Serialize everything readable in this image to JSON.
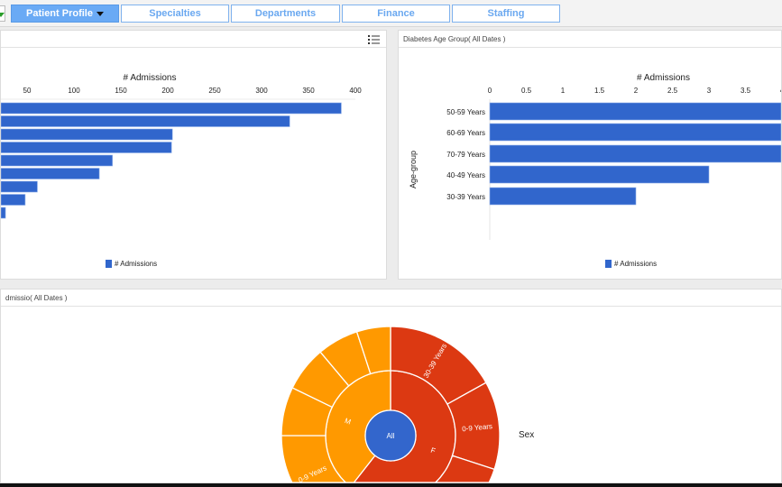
{
  "tabs": [
    {
      "label": "Patient Profile",
      "active": true
    },
    {
      "label": "Specialties"
    },
    {
      "label": "Departments"
    },
    {
      "label": "Finance"
    },
    {
      "label": "Staffing"
    }
  ],
  "colors": {
    "bar": "#3166cc",
    "female": "#dc3912",
    "male": "#ff9900",
    "root": "#3366cc",
    "tab_accent": "#6aaaf5"
  },
  "left_panel": {
    "title": "",
    "icon": "list-icon"
  },
  "right_panel": {
    "title": "Diabetes Age Group( All Dates )"
  },
  "bottom_panel": {
    "title": "dmissio( All Dates )"
  },
  "chart_data": [
    {
      "type": "bar",
      "orientation": "horizontal",
      "xlabel": "# Admissions",
      "ticks": [
        "50",
        "100",
        "150",
        "200",
        "250",
        "300",
        "350",
        "400"
      ],
      "xlim": [
        0,
        400
      ],
      "values": [
        385,
        330,
        205,
        204,
        141,
        127,
        61,
        48,
        27
      ],
      "legend": "# Admissions",
      "legend_position": "bottom"
    },
    {
      "type": "bar",
      "orientation": "horizontal",
      "xlabel": "# Admissions",
      "ylabel": "Age-group",
      "ticks": [
        "0",
        "0.5",
        "1",
        "1.5",
        "2",
        "2.5",
        "3",
        "3.5",
        "4"
      ],
      "xlim": [
        0,
        4
      ],
      "categories": [
        "50-59 Years",
        "60-69 Years",
        "70-79 Years",
        "40-49 Years",
        "30-39 Years"
      ],
      "values": [
        4,
        4,
        4,
        3,
        2
      ],
      "legend": "# Admissions",
      "legend_position": "bottom"
    },
    {
      "type": "sunburst",
      "root": "All",
      "legend_label": "Sex",
      "rings": [
        [
          {
            "label": "F",
            "from": 0,
            "to": 218,
            "color": "#dc3912"
          },
          {
            "label": "M",
            "from": 218,
            "to": 360,
            "color": "#ff9900"
          }
        ],
        [
          {
            "label": "30-39 Years",
            "from": 0,
            "to": 61,
            "color": "#dc3912"
          },
          {
            "label": "0-9 Years",
            "from": 61,
            "to": 108,
            "color": "#dc3912"
          },
          {
            "label": "",
            "from": 108,
            "to": 160,
            "color": "#dc3912"
          },
          {
            "label": "",
            "from": 160,
            "to": 218,
            "color": "#dc3912"
          },
          {
            "label": "0-9 Years",
            "from": 218,
            "to": 270,
            "color": "#ff9900"
          },
          {
            "label": "",
            "from": 270,
            "to": 296,
            "color": "#ff9900"
          },
          {
            "label": "",
            "from": 296,
            "to": 320,
            "color": "#ff9900"
          },
          {
            "label": "",
            "from": 320,
            "to": 342,
            "color": "#ff9900"
          },
          {
            "label": "",
            "from": 342,
            "to": 360,
            "color": "#ff9900"
          }
        ]
      ]
    }
  ]
}
